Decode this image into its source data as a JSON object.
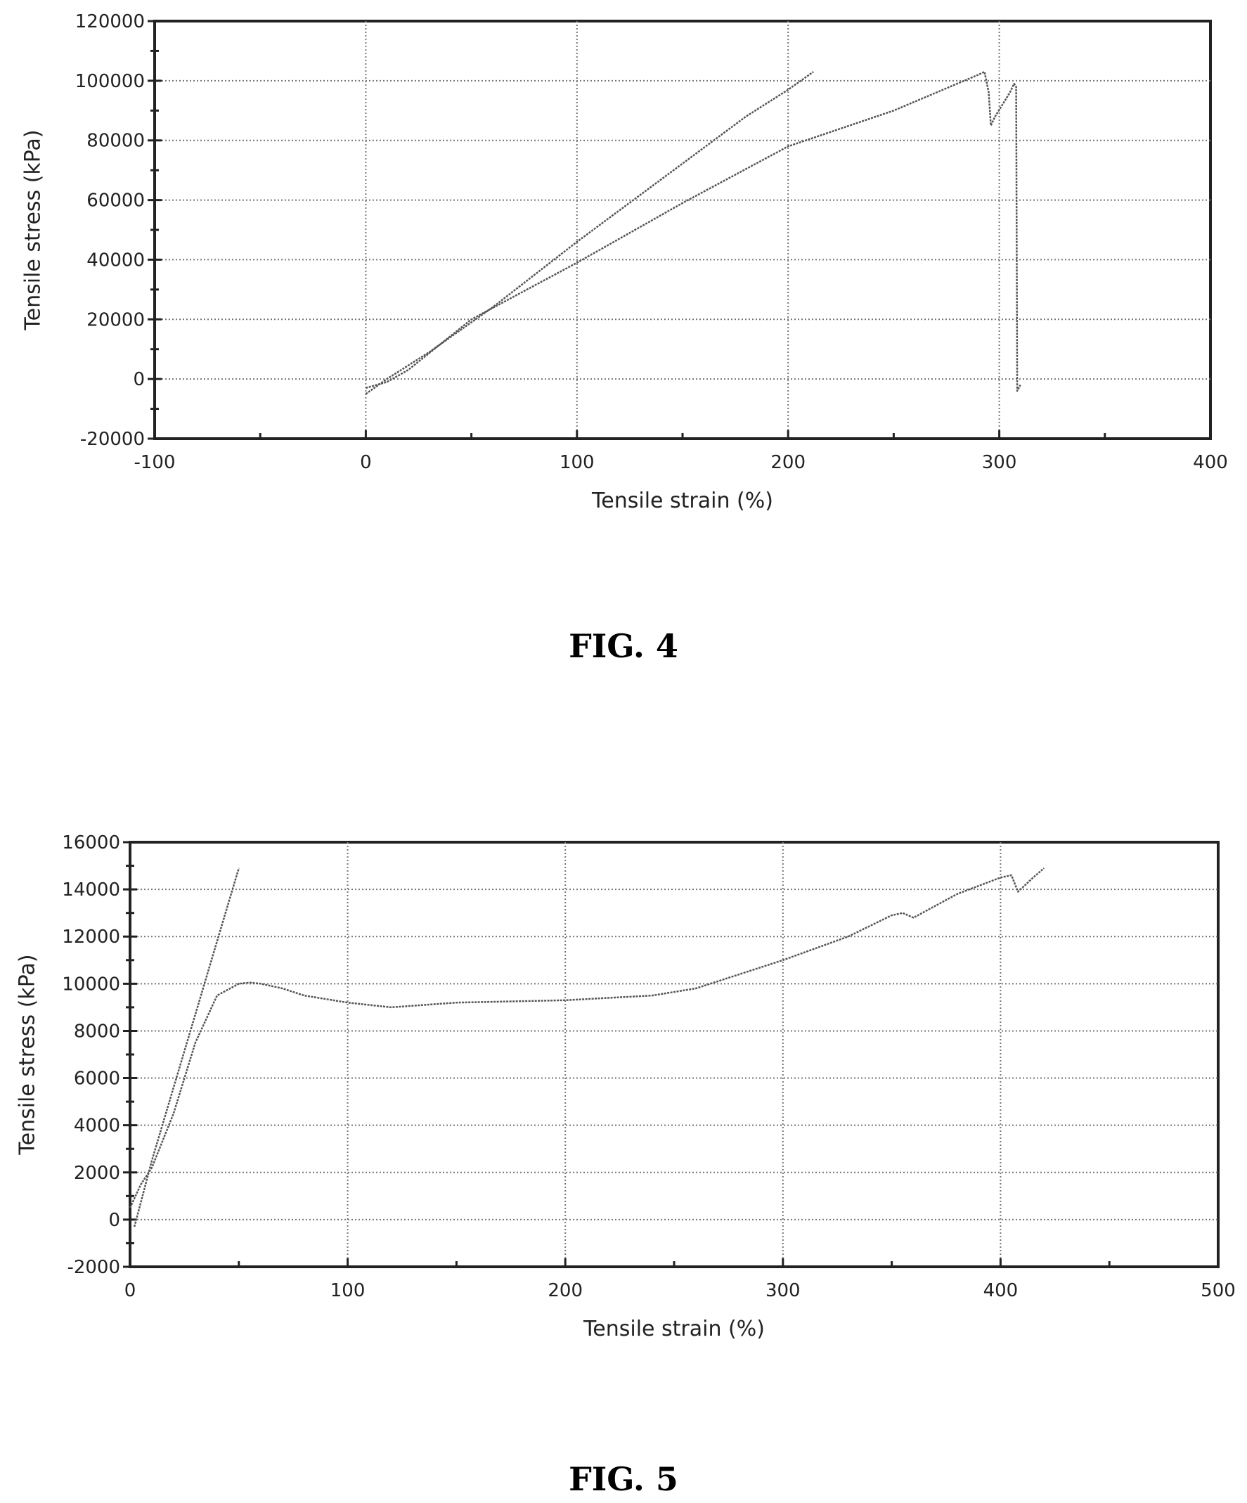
{
  "chart_data": [
    {
      "type": "line",
      "caption": "FIG. 4",
      "xlabel": "Tensile strain (%)",
      "ylabel": "Tensile stress (kPa)",
      "xlim": [
        -100,
        400
      ],
      "ylim": [
        -20000,
        120000
      ],
      "xticks": [
        "-100",
        "0",
        "100",
        "200",
        "300",
        "400"
      ],
      "yticks": [
        "120000",
        "100000",
        "80000",
        "60000",
        "40000",
        "20000",
        "0",
        "-20000"
      ],
      "grid": true,
      "series": [
        {
          "x": [
            0,
            10,
            30,
            60,
            100,
            140,
            180,
            200,
            212
          ],
          "y": [
            -5000,
            0,
            9000,
            24000,
            46000,
            67000,
            88000,
            97000,
            103000
          ]
        },
        {
          "x": [
            0,
            10,
            20,
            50,
            100,
            150,
            200,
            250,
            290,
            293,
            295,
            296,
            298,
            305,
            307,
            308,
            308.5,
            310
          ],
          "y": [
            -3000,
            -1000,
            3000,
            20000,
            39000,
            59000,
            78000,
            90000,
            102000,
            103000,
            96000,
            85000,
            88000,
            96000,
            99000,
            98000,
            -4000,
            -2000
          ]
        }
      ]
    },
    {
      "type": "line",
      "caption": "FIG. 5",
      "xlabel": "Tensile strain (%)",
      "ylabel": "Tensile stress (kPa)",
      "xlim": [
        0,
        500
      ],
      "ylim": [
        -2000,
        16000
      ],
      "xticks": [
        "0",
        "100",
        "200",
        "300",
        "400",
        "500"
      ],
      "yticks": [
        "16000",
        "14000",
        "12000",
        "10000",
        "8000",
        "6000",
        "4000",
        "2000",
        "0",
        "-2000"
      ],
      "grid": true,
      "series": [
        {
          "x": [
            2,
            10,
            20,
            30,
            40,
            50
          ],
          "y": [
            -300,
            2500,
            5600,
            8700,
            11800,
            14900
          ]
        },
        {
          "x": [
            0,
            5,
            10,
            20,
            30,
            40,
            50,
            55,
            60,
            70,
            80,
            100,
            120,
            150,
            200,
            240,
            260,
            300,
            330,
            350,
            355,
            360,
            380,
            400,
            405,
            408,
            415,
            420
          ],
          "y": [
            500,
            1500,
            2200,
            4500,
            7500,
            9500,
            10000,
            10050,
            10000,
            9800,
            9500,
            9200,
            9000,
            9200,
            9300,
            9500,
            9800,
            11000,
            12000,
            12900,
            13000,
            12800,
            13800,
            14500,
            14600,
            13900,
            14500,
            14900
          ]
        }
      ]
    }
  ]
}
